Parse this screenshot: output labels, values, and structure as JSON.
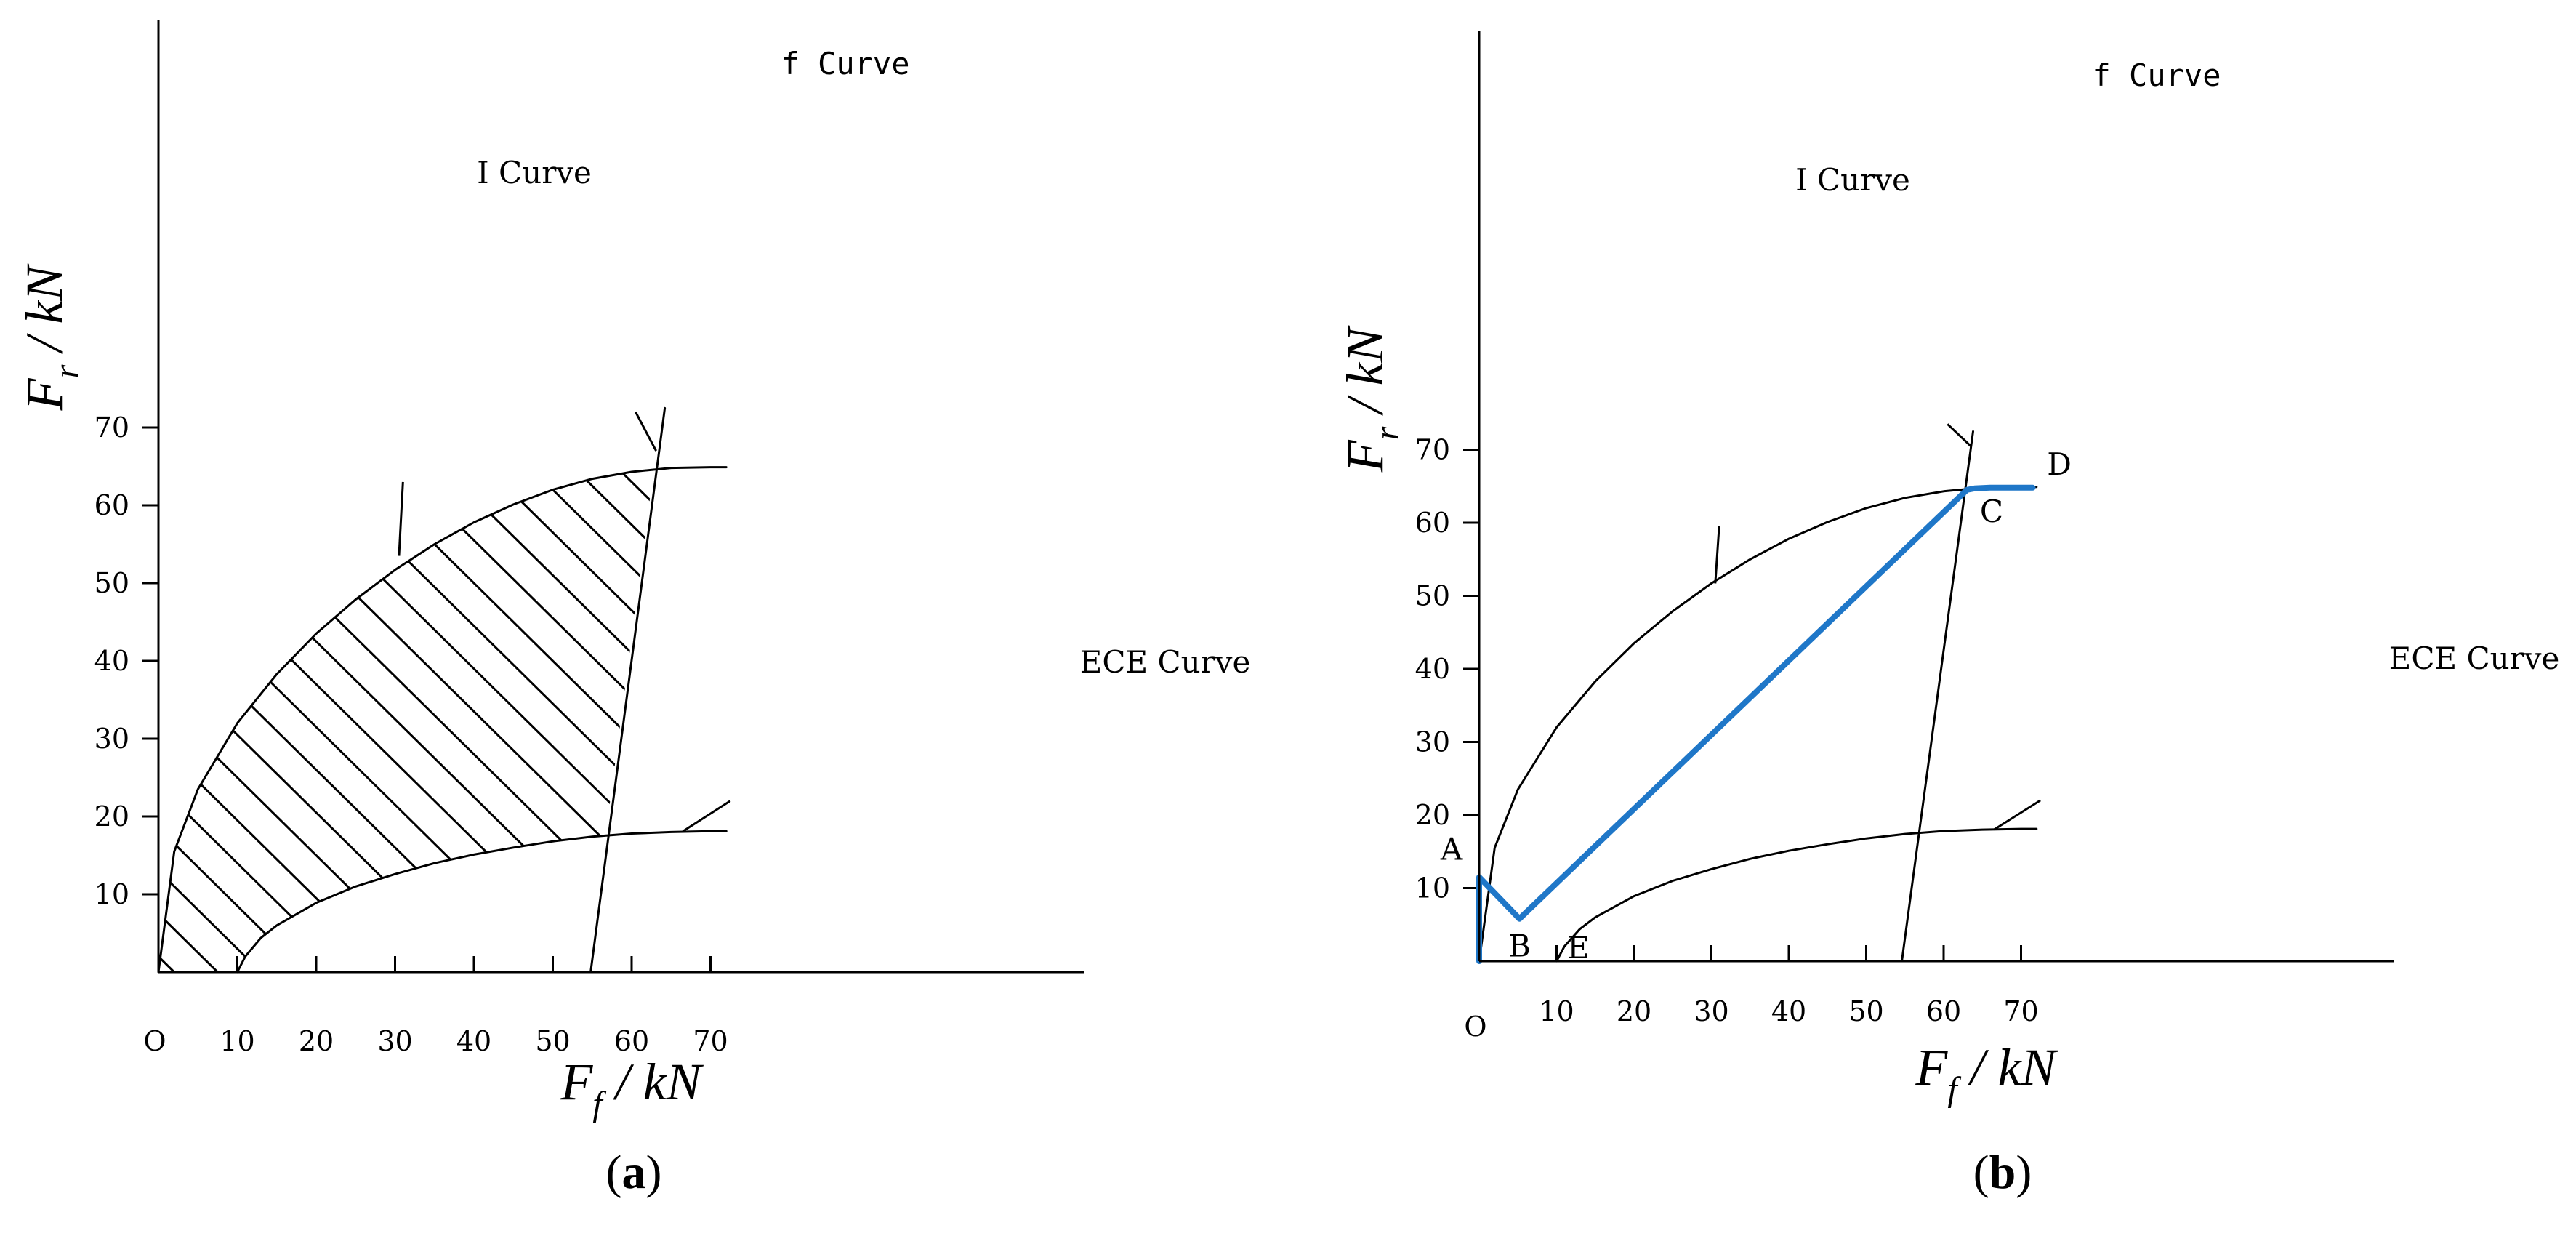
{
  "panels": [
    {
      "caption": "a",
      "origin_label": "O",
      "x_ticks": [
        10,
        20,
        30,
        40,
        50,
        60,
        70
      ],
      "y_ticks": [
        10,
        20,
        30,
        40,
        50,
        60,
        70
      ],
      "xlabel": {
        "main": "F",
        "sub": "f",
        "unit": " / kN"
      },
      "ylabel": {
        "main": "F",
        "sub": "r",
        "unit": " / kN"
      },
      "curves": {
        "i": "I Curve",
        "f": "f Curve",
        "ece": "ECE Curve"
      },
      "points": []
    },
    {
      "caption": "b",
      "origin_label": "O",
      "x_ticks": [
        10,
        20,
        30,
        40,
        50,
        60,
        70
      ],
      "y_ticks": [
        10,
        20,
        30,
        40,
        50,
        60,
        70
      ],
      "xlabel": {
        "main": "F",
        "sub": "f",
        "unit": " / kN"
      },
      "ylabel": {
        "main": "F",
        "sub": "r",
        "unit": " / kN"
      },
      "curves": {
        "i": "I Curve",
        "f": "f Curve",
        "ece": "ECE Curve"
      },
      "points": [
        {
          "label": "A",
          "x": 0,
          "y": 11.5
        },
        {
          "label": "B",
          "x": 5.2,
          "y": 5.8
        },
        {
          "label": "C",
          "x": 63,
          "y": 64.5
        },
        {
          "label": "D",
          "x": 71,
          "y": 64.8
        },
        {
          "label": "E",
          "x": 10,
          "y": 0
        }
      ]
    }
  ],
  "chart_data": [
    {
      "type": "line",
      "xlim": [
        0,
        73
      ],
      "ylim": [
        0,
        77
      ],
      "xlabel": "Ff / kN",
      "ylabel": "Fr / kN",
      "shaded_region": "hatched region between I Curve, f Curve and ECE Curve",
      "series": [
        {
          "name": "I Curve",
          "x": [
            0,
            2,
            5,
            10,
            15,
            20,
            25,
            30,
            35,
            40,
            45,
            50,
            55,
            60,
            65,
            70,
            72
          ],
          "y": [
            0,
            15.5,
            23.5,
            32,
            38.3,
            43.5,
            47.9,
            51.7,
            55,
            57.8,
            60.1,
            62,
            63.4,
            64.3,
            64.8,
            64.9,
            64.9
          ]
        },
        {
          "name": "f Curve",
          "x": [
            54.8,
            64.2
          ],
          "y": [
            0,
            72.5
          ]
        },
        {
          "name": "ECE Curve",
          "x": [
            10,
            11,
            13,
            15,
            20,
            25,
            30,
            35,
            40,
            45,
            50,
            55,
            60,
            65,
            70,
            72
          ],
          "y": [
            0,
            2,
            4.4,
            6,
            8.9,
            11,
            12.6,
            14,
            15.1,
            16,
            16.8,
            17.4,
            17.8,
            18,
            18.1,
            18.1
          ]
        }
      ]
    },
    {
      "type": "line",
      "xlim": [
        0,
        74
      ],
      "ylim": [
        0,
        77
      ],
      "xlabel": "Ff / kN",
      "ylabel": "Fr / kN",
      "series": [
        {
          "name": "I Curve",
          "x": [
            0,
            2,
            5,
            10,
            15,
            20,
            25,
            30,
            35,
            40,
            45,
            50,
            55,
            60,
            65,
            70,
            72
          ],
          "y": [
            0,
            15.5,
            23.5,
            32,
            38.3,
            43.5,
            47.9,
            51.7,
            55,
            57.8,
            60.1,
            62,
            63.4,
            64.3,
            64.8,
            64.9,
            64.9
          ]
        },
        {
          "name": "f Curve",
          "x": [
            54.6,
            63.8
          ],
          "y": [
            0,
            72.5
          ]
        },
        {
          "name": "ECE Curve",
          "x": [
            10,
            11,
            13,
            15,
            20,
            25,
            30,
            35,
            40,
            45,
            50,
            55,
            60,
            65,
            70,
            72
          ],
          "y": [
            0,
            2,
            4.4,
            6,
            8.9,
            11,
            12.6,
            14,
            15.1,
            16,
            16.8,
            17.4,
            17.8,
            18,
            18.1,
            18.1
          ]
        },
        {
          "name": "",
          "color": "#1f77c8",
          "x": [
            0,
            0,
            5.2,
            63,
            64,
            66,
            69,
            71.5
          ],
          "y": [
            0,
            11.5,
            5.8,
            64.5,
            64.7,
            64.8,
            64.8,
            64.8
          ]
        }
      ]
    }
  ]
}
